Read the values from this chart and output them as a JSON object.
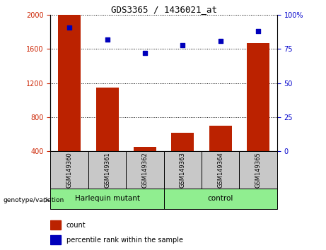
{
  "title": "GDS3365 / 1436021_at",
  "samples": [
    "GSM149360",
    "GSM149361",
    "GSM149362",
    "GSM149363",
    "GSM149364",
    "GSM149365"
  ],
  "counts": [
    2000,
    1150,
    450,
    620,
    700,
    1670
  ],
  "percentiles": [
    91,
    82,
    72,
    78,
    81,
    88
  ],
  "ylim_left": [
    400,
    2000
  ],
  "ylim_right": [
    0,
    100
  ],
  "yticks_left": [
    400,
    800,
    1200,
    1600,
    2000
  ],
  "yticks_right": [
    0,
    25,
    50,
    75,
    100
  ],
  "groups": [
    {
      "label": "Harlequin mutant",
      "start": 0,
      "end": 2
    },
    {
      "label": "control",
      "start": 3,
      "end": 5
    }
  ],
  "bar_color": "#bb2200",
  "dot_color": "#0000bb",
  "bar_width": 0.6,
  "bg_color": "#ffffff",
  "tick_bg": "#c8c8c8",
  "group_bg": "#90ee90",
  "legend_count_label": "count",
  "legend_pct_label": "percentile rank within the sample",
  "ylabel_left_color": "#cc2200",
  "ylabel_right_color": "#0000cc",
  "title_font": "monospace",
  "title_fontsize": 9
}
